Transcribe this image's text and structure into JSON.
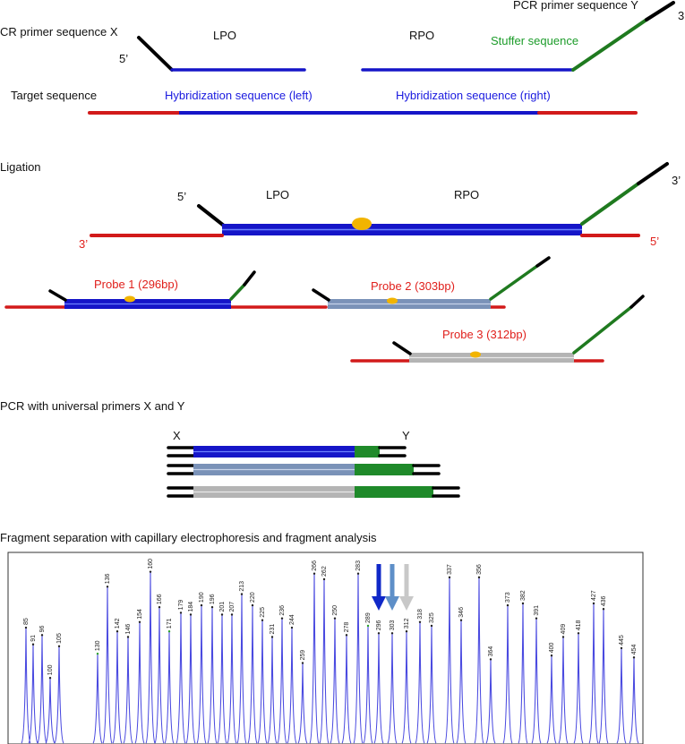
{
  "colors": {
    "lpo_blue": "#1515c8",
    "target_red": "#d21a1a",
    "stuffer_green": "#1f7a1f",
    "primer_black": "#000000",
    "probe2_steel": "#7a92b8",
    "probe3_grey": "#b4b4b4",
    "ligation_dot": "#f2b400",
    "peak_blue": "#4a4ae0",
    "arrow_blue": "#1028c8",
    "arrow_steel": "#5e8fc8",
    "arrow_grey": "#c8c8c8"
  },
  "section1": {
    "primer_x_label": "CR primer sequence X",
    "primer_y_label": "PCR primer sequence Y",
    "three_prime_top": "3",
    "five_prime": "5’",
    "lpo_label": "LPO",
    "rpo_label": "RPO",
    "stuffer_label": "Stuffer sequence",
    "target_label": "Target sequence",
    "hyb_left_label": "Hybridization sequence (left)",
    "hyb_right_label": "Hybridization sequence (right)"
  },
  "section2": {
    "title": "Ligation",
    "five_prime": "5’",
    "three_prime": "3’",
    "lpo_label": "LPO",
    "rpo_label": "RPO",
    "red_three_prime": "3’",
    "red_five_prime": "5’"
  },
  "probes": {
    "probe1": "Probe 1 (296bp)",
    "probe2": "Probe 2 (303bp)",
    "probe3": "Probe 3 (312bp)"
  },
  "section3": {
    "title": "PCR with universal primers X and Y",
    "x_label": "X",
    "y_label": "Y"
  },
  "section4": {
    "title": "Fragment separation with capillary electrophoresis and fragment analysis"
  },
  "electropherogram": {
    "peaks": [
      {
        "size": 85,
        "height": 0.62
      },
      {
        "size": 91,
        "height": 0.53
      },
      {
        "size": 96,
        "height": 0.58
      },
      {
        "size": 100,
        "height": 0.35
      },
      {
        "size": 105,
        "height": 0.52
      },
      {
        "size": 130,
        "height": 0.48
      },
      {
        "size": 136,
        "height": 0.84
      },
      {
        "size": 142,
        "height": 0.6
      },
      {
        "size": 146,
        "height": 0.57
      },
      {
        "size": 154,
        "height": 0.65
      },
      {
        "size": 160,
        "height": 0.92
      },
      {
        "size": 166,
        "height": 0.73
      },
      {
        "size": 171,
        "height": 0.6
      },
      {
        "size": 179,
        "height": 0.7
      },
      {
        "size": 184,
        "height": 0.69
      },
      {
        "size": 190,
        "height": 0.74
      },
      {
        "size": 196,
        "height": 0.73
      },
      {
        "size": 201,
        "height": 0.69
      },
      {
        "size": 207,
        "height": 0.69
      },
      {
        "size": 213,
        "height": 0.8
      },
      {
        "size": 220,
        "height": 0.74
      },
      {
        "size": 225,
        "height": 0.66
      },
      {
        "size": 231,
        "height": 0.57
      },
      {
        "size": 236,
        "height": 0.67
      },
      {
        "size": 244,
        "height": 0.62
      },
      {
        "size": 259,
        "height": 0.43
      },
      {
        "size": 266,
        "height": 0.91
      },
      {
        "size": 262,
        "height": 0.88
      },
      {
        "size": 250,
        "height": 0.67
      },
      {
        "size": 278,
        "height": 0.58
      },
      {
        "size": 283,
        "height": 0.91
      },
      {
        "size": 289,
        "height": 0.63
      },
      {
        "size": 296,
        "height": 0.59
      },
      {
        "size": 303,
        "height": 0.59
      },
      {
        "size": 312,
        "height": 0.6
      },
      {
        "size": 318,
        "height": 0.65
      },
      {
        "size": 325,
        "height": 0.63
      },
      {
        "size": 337,
        "height": 0.89
      },
      {
        "size": 346,
        "height": 0.66
      },
      {
        "size": 356,
        "height": 0.89
      },
      {
        "size": 364,
        "height": 0.45
      },
      {
        "size": 373,
        "height": 0.74
      },
      {
        "size": 382,
        "height": 0.75
      },
      {
        "size": 391,
        "height": 0.67
      },
      {
        "size": 400,
        "height": 0.47
      },
      {
        "size": 409,
        "height": 0.57
      },
      {
        "size": 418,
        "height": 0.59
      },
      {
        "size": 427,
        "height": 0.75
      },
      {
        "size": 436,
        "height": 0.72
      },
      {
        "size": 445,
        "height": 0.51
      },
      {
        "size": 454,
        "height": 0.46
      }
    ]
  }
}
